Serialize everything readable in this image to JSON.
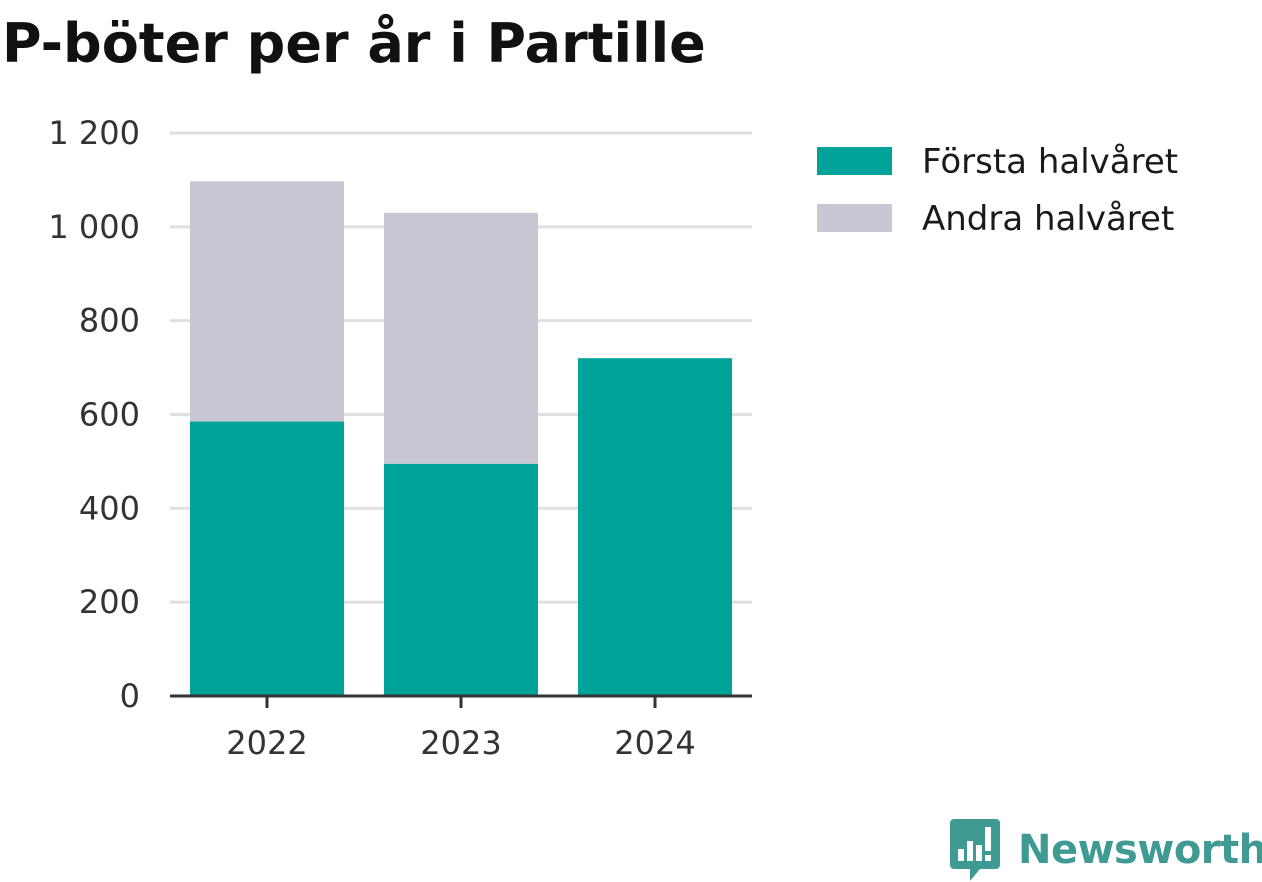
{
  "chart_data": {
    "type": "bar",
    "stacked": true,
    "title": "P-böter per år i Partille",
    "xlabel": "",
    "ylabel": "",
    "categories": [
      "2022",
      "2023",
      "2024"
    ],
    "series": [
      {
        "name": "Första halvåret",
        "color": "#00a39a",
        "values": [
          585,
          495,
          720
        ]
      },
      {
        "name": "Andra halvåret",
        "color": "#c8c7d3",
        "values": [
          512,
          535,
          0
        ]
      }
    ],
    "ylim": [
      0,
      1200
    ],
    "yticks": [
      0,
      200,
      400,
      600,
      800,
      1000,
      1200
    ],
    "ytick_labels": [
      "0",
      "200",
      "400",
      "600",
      "800",
      "1 000",
      "1 200"
    ],
    "grid": true,
    "legend_position": "top-right"
  },
  "brand": {
    "name": "Newsworthy",
    "icon": "newsworthy-logo-icon",
    "color": "#3f9a93"
  }
}
